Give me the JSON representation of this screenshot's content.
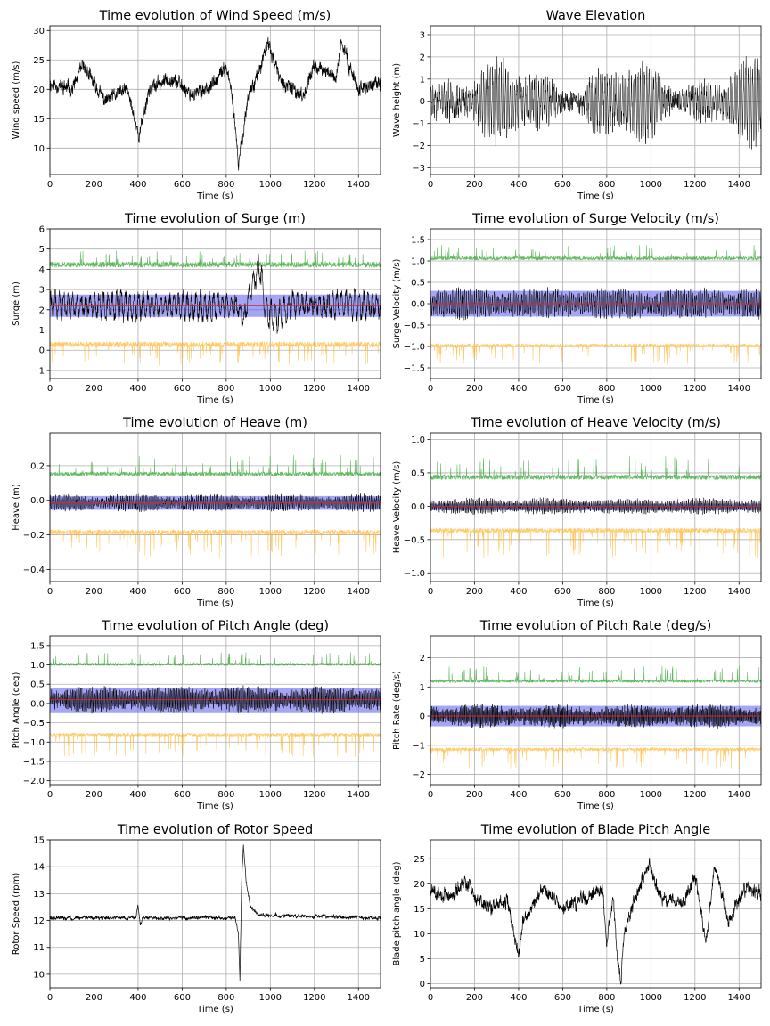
{
  "figure": {
    "background": "#ffffff"
  },
  "colors": {
    "signal": "#000000",
    "upper_band": "#2ca02c",
    "lower_band": "#ffb733",
    "std_band": "#5b5bef",
    "mean_line": "#d62728",
    "grid": "#b0b0b0"
  },
  "chart_data": [
    {
      "id": "wind",
      "type": "line",
      "title": "Time evolution of Wind Speed (m/s)",
      "xlabel": "Time (s)",
      "ylabel": "Wind speed (m/s)",
      "xlim": [
        0,
        1500
      ],
      "ylim": [
        5.5,
        30.8
      ],
      "xticks": [
        0,
        200,
        400,
        600,
        800,
        1000,
        1200,
        1400
      ],
      "yticks": [
        10,
        15,
        20,
        25,
        30
      ],
      "grid": true,
      "series": [
        {
          "name": "signal",
          "kind": "line",
          "color": "#000000",
          "width": 0.7,
          "mean": 20.5,
          "noise": 2.5,
          "seed": 11,
          "keypoints": [
            [
              0,
              21
            ],
            [
              100,
              20
            ],
            [
              150,
              24
            ],
            [
              250,
              18
            ],
            [
              350,
              20
            ],
            [
              405,
              12
            ],
            [
              450,
              20
            ],
            [
              550,
              22
            ],
            [
              650,
              19
            ],
            [
              750,
              21
            ],
            [
              800,
              24
            ],
            [
              830,
              18
            ],
            [
              855,
              7
            ],
            [
              900,
              19
            ],
            [
              960,
              24
            ],
            [
              990,
              28
            ],
            [
              1050,
              21
            ],
            [
              1150,
              19
            ],
            [
              1200,
              24
            ],
            [
              1250,
              23
            ],
            [
              1300,
              22
            ],
            [
              1320,
              28
            ],
            [
              1400,
              20
            ],
            [
              1500,
              21
            ]
          ]
        }
      ]
    },
    {
      "id": "wave",
      "type": "line",
      "title": "Wave Elevation",
      "xlabel": "Time (s)",
      "ylabel": "Wave height (m)",
      "xlim": [
        0,
        1500
      ],
      "ylim": [
        -3.3,
        3.4
      ],
      "xticks": [
        0,
        200,
        400,
        600,
        800,
        1000,
        1200,
        1400
      ],
      "yticks": [
        -3,
        -2,
        -1,
        0,
        1,
        2,
        3
      ],
      "grid": true,
      "series": [
        {
          "name": "signal",
          "kind": "wave",
          "color": "#000000",
          "width": 0.5,
          "amp": 1.4,
          "period": 10,
          "seed": 23,
          "keypoints": [
            [
              0,
              0
            ],
            [
              1500,
              0
            ]
          ]
        }
      ]
    },
    {
      "id": "surge",
      "type": "line",
      "title": "Time evolution of Surge (m)",
      "xlabel": "Time (s)",
      "ylabel": "Surge (m)",
      "xlim": [
        0,
        1500
      ],
      "ylim": [
        -1.4,
        6.0
      ],
      "xticks": [
        0,
        200,
        400,
        600,
        800,
        1000,
        1200,
        1400
      ],
      "yticks": [
        -1,
        0,
        1,
        2,
        3,
        4,
        5,
        6
      ],
      "grid": true,
      "band": {
        "low": 1.65,
        "high": 2.75
      },
      "mean_line": 2.2,
      "series": [
        {
          "name": "upper",
          "kind": "envelope",
          "color": "#2ca02c",
          "alpha": 0.75,
          "width": 0.6,
          "base": 4.1,
          "amp": 0.45,
          "spike_prob": 0.06,
          "spike_amp": 0.9,
          "seed": 31
        },
        {
          "name": "signal",
          "kind": "osc",
          "color": "#000000",
          "width": 0.6,
          "amp": 0.65,
          "period": 20,
          "seed": 37,
          "keypoints": [
            [
              0,
              2.2
            ],
            [
              850,
              2.2
            ],
            [
              880,
              1.5
            ],
            [
              910,
              3.0
            ],
            [
              950,
              4.2
            ],
            [
              980,
              2.0
            ],
            [
              1030,
              1.6
            ],
            [
              1100,
              2.3
            ],
            [
              1500,
              2.2
            ]
          ]
        },
        {
          "name": "lower",
          "kind": "envelope",
          "color": "#ffb733",
          "alpha": 0.75,
          "width": 0.6,
          "base": 0.15,
          "amp": -0.45,
          "spike_prob": 0.06,
          "spike_amp": -0.9,
          "seed": 41
        }
      ]
    },
    {
      "id": "surge_vel",
      "type": "line",
      "title": "Time evolution of Surge Velocity (m/s)",
      "xlabel": "Time (s)",
      "ylabel": "Surge Velocity (m/s)",
      "xlim": [
        0,
        1500
      ],
      "ylim": [
        -1.75,
        1.75
      ],
      "xticks": [
        0,
        200,
        400,
        600,
        800,
        1000,
        1200,
        1400
      ],
      "yticks": [
        -1.5,
        -1.0,
        -0.5,
        0.0,
        0.5,
        1.0,
        1.5
      ],
      "grid": true,
      "band": {
        "low": -0.3,
        "high": 0.3
      },
      "mean_line": 0.0,
      "series": [
        {
          "name": "upper",
          "kind": "envelope",
          "color": "#2ca02c",
          "alpha": 0.75,
          "width": 0.6,
          "base": 1.02,
          "amp": 0.14,
          "spike_prob": 0.05,
          "spike_amp": 0.35,
          "seed": 51
        },
        {
          "name": "signal",
          "kind": "osc",
          "color": "#000000",
          "width": 0.5,
          "amp": 0.3,
          "period": 9,
          "seed": 53,
          "keypoints": [
            [
              0,
              0
            ],
            [
              1500,
              0
            ]
          ]
        },
        {
          "name": "lower",
          "kind": "envelope",
          "color": "#ffb733",
          "alpha": 0.75,
          "width": 0.6,
          "base": -1.02,
          "amp": -0.14,
          "spike_prob": 0.05,
          "spike_amp": -0.4,
          "seed": 57
        }
      ]
    },
    {
      "id": "heave",
      "type": "line",
      "title": "Time evolution of Heave (m)",
      "xlabel": "Time (s)",
      "ylabel": "Heave (m)",
      "xlim": [
        0,
        1500
      ],
      "ylim": [
        -0.47,
        0.39
      ],
      "xticks": [
        0,
        200,
        400,
        600,
        800,
        1000,
        1200,
        1400
      ],
      "yticks": [
        -0.4,
        -0.2,
        0.0,
        0.2
      ],
      "grid": true,
      "band": {
        "low": -0.055,
        "high": 0.025
      },
      "mean_line": -0.015,
      "series": [
        {
          "name": "upper",
          "kind": "envelope",
          "color": "#2ca02c",
          "alpha": 0.75,
          "width": 0.6,
          "base": 0.14,
          "amp": 0.04,
          "spike_prob": 0.05,
          "spike_amp": 0.12,
          "seed": 61
        },
        {
          "name": "signal",
          "kind": "osc",
          "color": "#000000",
          "width": 0.5,
          "amp": 0.04,
          "period": 8,
          "seed": 67,
          "keypoints": [
            [
              0,
              -0.015
            ],
            [
              1500,
              -0.015
            ]
          ]
        },
        {
          "name": "lower",
          "kind": "envelope",
          "color": "#ffb733",
          "alpha": 0.75,
          "width": 0.6,
          "base": -0.2,
          "amp": -0.05,
          "spike_prob": 0.05,
          "spike_amp": -0.13,
          "seed": 71
        }
      ]
    },
    {
      "id": "heave_vel",
      "type": "line",
      "title": "Time evolution of Heave Velocity (m/s)",
      "xlabel": "Time (s)",
      "ylabel": "Heave Velocity (m/s)",
      "xlim": [
        0,
        1500
      ],
      "ylim": [
        -1.13,
        1.1
      ],
      "xticks": [
        0,
        200,
        400,
        600,
        800,
        1000,
        1200,
        1400
      ],
      "yticks": [
        -1.0,
        -0.5,
        0.0,
        0.5,
        1.0
      ],
      "grid": true,
      "band": {
        "low": -0.06,
        "high": 0.04
      },
      "mean_line": 0.0,
      "series": [
        {
          "name": "upper",
          "kind": "envelope",
          "color": "#2ca02c",
          "alpha": 0.75,
          "width": 0.6,
          "base": 0.4,
          "amp": 0.12,
          "spike_prob": 0.05,
          "spike_amp": 0.35,
          "seed": 81
        },
        {
          "name": "signal",
          "kind": "osc",
          "color": "#000000",
          "width": 0.5,
          "amp": 0.1,
          "period": 7,
          "seed": 83,
          "keypoints": [
            [
              0,
              0
            ],
            [
              1500,
              0
            ]
          ]
        },
        {
          "name": "lower",
          "kind": "envelope",
          "color": "#ffb733",
          "alpha": 0.75,
          "width": 0.6,
          "base": -0.4,
          "amp": -0.12,
          "spike_prob": 0.05,
          "spike_amp": -0.4,
          "seed": 87
        }
      ]
    },
    {
      "id": "pitch",
      "type": "line",
      "title": "Time evolution of Pitch Angle (deg)",
      "xlabel": "Time (s)",
      "ylabel": "Pitch Angle (deg)",
      "xlim": [
        0,
        1500
      ],
      "ylim": [
        -2.1,
        1.75
      ],
      "xticks": [
        0,
        200,
        400,
        600,
        800,
        1000,
        1200,
        1400
      ],
      "yticks": [
        -2.0,
        -1.5,
        -1.0,
        -0.5,
        0.0,
        0.5,
        1.0,
        1.5
      ],
      "grid": true,
      "band": {
        "low": -0.25,
        "high": 0.4
      },
      "mean_line": 0.1,
      "series": [
        {
          "name": "upper",
          "kind": "envelope",
          "color": "#2ca02c",
          "alpha": 0.75,
          "width": 0.6,
          "base": 0.98,
          "amp": 0.12,
          "spike_prob": 0.05,
          "spike_amp": 0.35,
          "seed": 91
        },
        {
          "name": "signal",
          "kind": "osc",
          "color": "#000000",
          "width": 0.5,
          "amp": 0.28,
          "period": 6,
          "seed": 93,
          "keypoints": [
            [
              0,
              0.1
            ],
            [
              1500,
              0.1
            ]
          ]
        },
        {
          "name": "lower",
          "kind": "envelope",
          "color": "#ffb733",
          "alpha": 0.75,
          "width": 0.6,
          "base": -0.85,
          "amp": -0.14,
          "spike_prob": 0.05,
          "spike_amp": -0.55,
          "seed": 97
        }
      ]
    },
    {
      "id": "pitch_rate",
      "type": "line",
      "title": "Time evolution of Pitch Rate (deg/s)",
      "xlabel": "Time (s)",
      "ylabel": "Pitch Rate (deg/s)",
      "xlim": [
        0,
        1500
      ],
      "ylim": [
        -2.35,
        2.75
      ],
      "xticks": [
        0,
        200,
        400,
        600,
        800,
        1000,
        1200,
        1400
      ],
      "yticks": [
        -2,
        -1,
        0,
        1,
        2
      ],
      "grid": true,
      "band": {
        "low": -0.35,
        "high": 0.35
      },
      "mean_line": 0.0,
      "series": [
        {
          "name": "upper",
          "kind": "envelope",
          "color": "#2ca02c",
          "alpha": 0.75,
          "width": 0.6,
          "base": 1.15,
          "amp": 0.18,
          "spike_prob": 0.05,
          "spike_amp": 0.6,
          "seed": 101
        },
        {
          "name": "signal",
          "kind": "osc",
          "color": "#000000",
          "width": 0.5,
          "amp": 0.32,
          "period": 5,
          "seed": 103,
          "keypoints": [
            [
              0,
              0
            ],
            [
              1500,
              0
            ]
          ]
        },
        {
          "name": "lower",
          "kind": "envelope",
          "color": "#ffb733",
          "alpha": 0.75,
          "width": 0.6,
          "base": -1.2,
          "amp": -0.2,
          "spike_prob": 0.05,
          "spike_amp": -0.6,
          "seed": 107
        }
      ]
    },
    {
      "id": "rotor",
      "type": "line",
      "title": "Time evolution of Rotor Speed",
      "xlabel": "Time (s)",
      "ylabel": "Rotor Speed (rpm)",
      "xlim": [
        0,
        1500
      ],
      "ylim": [
        9.5,
        15.0
      ],
      "xticks": [
        0,
        200,
        400,
        600,
        800,
        1000,
        1200,
        1400
      ],
      "yticks": [
        10,
        11,
        12,
        13,
        14,
        15
      ],
      "grid": true,
      "series": [
        {
          "name": "signal",
          "kind": "line",
          "color": "#000000",
          "width": 0.7,
          "mean": 12.1,
          "noise": 0.15,
          "seed": 111,
          "keypoints": [
            [
              0,
              12.1
            ],
            [
              390,
              12.1
            ],
            [
              400,
              12.6
            ],
            [
              410,
              11.8
            ],
            [
              420,
              12.1
            ],
            [
              840,
              12.1
            ],
            [
              855,
              11.5
            ],
            [
              862,
              9.8
            ],
            [
              870,
              13.5
            ],
            [
              878,
              14.8
            ],
            [
              890,
              13.5
            ],
            [
              910,
              12.5
            ],
            [
              950,
              12.2
            ],
            [
              1500,
              12.1
            ]
          ]
        }
      ]
    },
    {
      "id": "blade_pitch",
      "type": "line",
      "title": "Time evolution of Blade Pitch Angle",
      "xlabel": "Time (s)",
      "ylabel": "Blade pitch angle (deg)",
      "xlim": [
        0,
        1500
      ],
      "ylim": [
        -0.8,
        28.8
      ],
      "xticks": [
        0,
        200,
        400,
        600,
        800,
        1000,
        1200,
        1400
      ],
      "yticks": [
        0,
        5,
        10,
        15,
        20,
        25
      ],
      "grid": true,
      "series": [
        {
          "name": "signal",
          "kind": "line",
          "color": "#000000",
          "width": 0.7,
          "mean": 17.5,
          "noise": 2.8,
          "seed": 121,
          "keypoints": [
            [
              0,
              19
            ],
            [
              100,
              17
            ],
            [
              150,
              21
            ],
            [
              250,
              15
            ],
            [
              350,
              17
            ],
            [
              400,
              5
            ],
            [
              420,
              13
            ],
            [
              520,
              19
            ],
            [
              600,
              15
            ],
            [
              700,
              17
            ],
            [
              780,
              19
            ],
            [
              800,
              8
            ],
            [
              830,
              17
            ],
            [
              850,
              4
            ],
            [
              862,
              0
            ],
            [
              880,
              10
            ],
            [
              950,
              20
            ],
            [
              990,
              24
            ],
            [
              1050,
              17
            ],
            [
              1150,
              16
            ],
            [
              1200,
              22
            ],
            [
              1250,
              8
            ],
            [
              1290,
              24
            ],
            [
              1350,
              12
            ],
            [
              1420,
              19
            ],
            [
              1500,
              18
            ]
          ]
        }
      ]
    }
  ]
}
